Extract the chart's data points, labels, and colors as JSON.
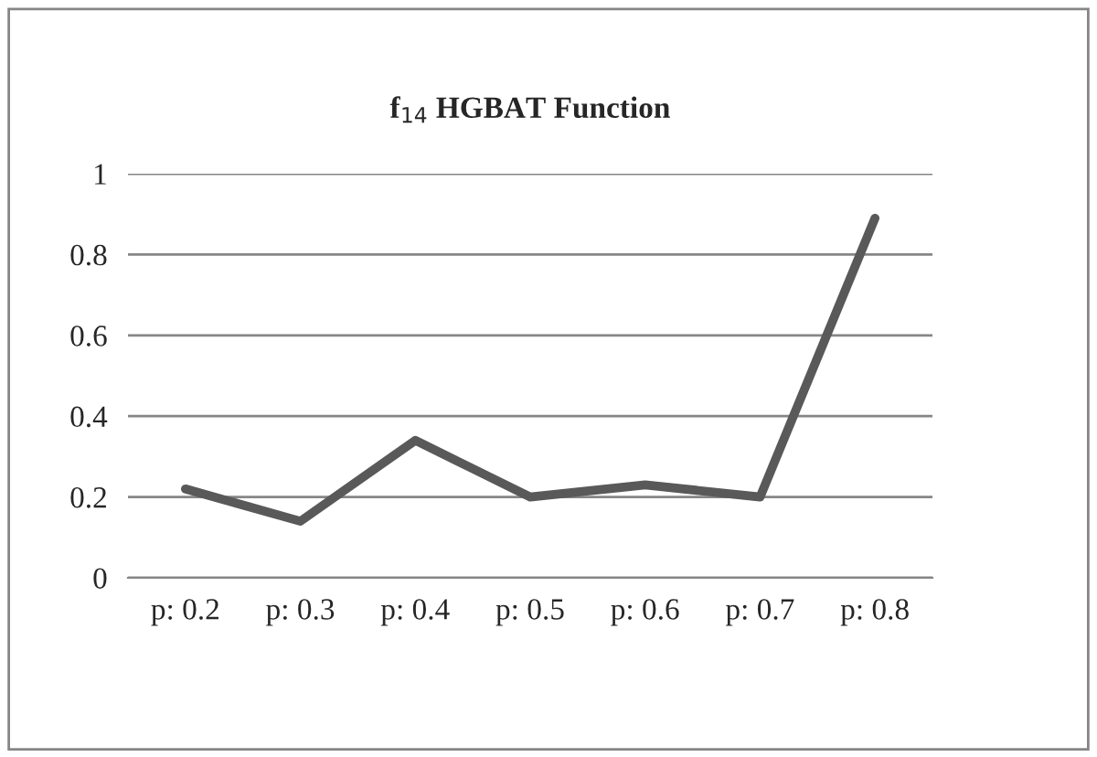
{
  "chart_data": {
    "type": "line",
    "title": "f$_{14}$ HGBAT Function",
    "categories": [
      "p: 0.2",
      "p: 0.3",
      "p: 0.4",
      "p: 0.5",
      "p: 0.6",
      "p: 0.7",
      "p: 0.8"
    ],
    "series": [
      {
        "color": "#595959",
        "values": [
          0.22,
          0.14,
          0.34,
          0.2,
          0.23,
          0.2,
          0.89
        ]
      }
    ],
    "ylim": [
      0,
      1
    ],
    "yticks": [
      0,
      0.2,
      0.4,
      0.6,
      0.8,
      1
    ],
    "grid": "y",
    "legend": false,
    "marker": "none",
    "line_style": "solid"
  }
}
